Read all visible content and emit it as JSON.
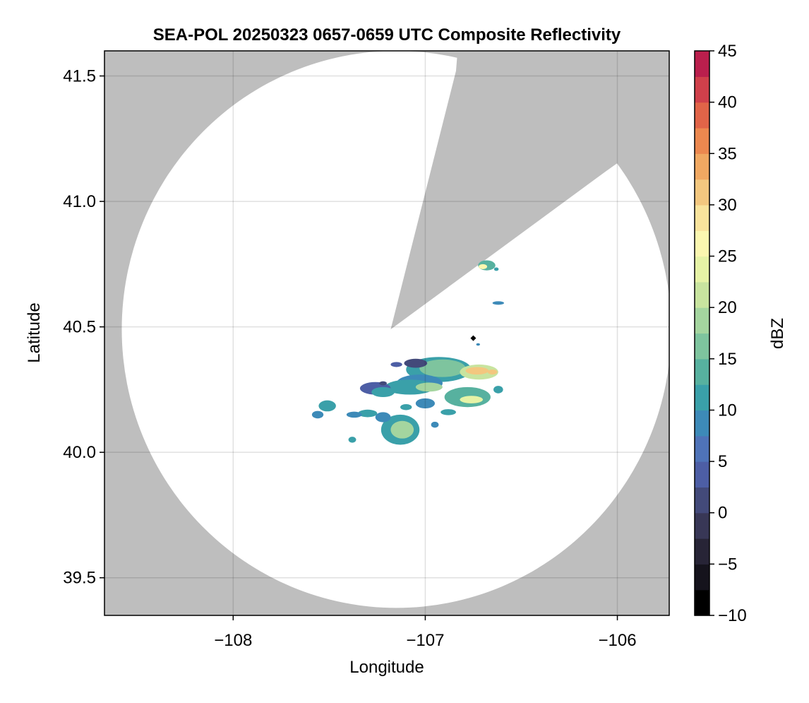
{
  "chart_data": {
    "type": "heatmap",
    "title": "SEA-POL 20250323 0657-0659 UTC Composite Reflectivity",
    "xlabel": "Longitude",
    "ylabel": "Latitude",
    "xlim": [
      -108.67,
      -105.73
    ],
    "ylim": [
      39.35,
      41.6
    ],
    "x_ticks": [
      -108,
      -107,
      -106
    ],
    "x_tick_labels": [
      "−108",
      "−107",
      "−106"
    ],
    "y_ticks": [
      39.5,
      40.0,
      40.5,
      41.0,
      41.5
    ],
    "y_tick_labels": [
      "39.5",
      "40.0",
      "40.5",
      "41.0",
      "41.5"
    ],
    "grid": true,
    "background_color": "#bebebe",
    "coverage_color": "#ffffff",
    "radar_site": {
      "lon": -106.75,
      "lat": 40.455
    },
    "coverage": {
      "center": {
        "lon": -107.15,
        "lat": 40.49
      },
      "radius_lon": 1.43,
      "radius_lat": 1.11,
      "blocked_sector_vertices": [
        {
          "lon": -107.18,
          "lat": 40.49
        },
        {
          "lon": -106.84,
          "lat": 41.52
        },
        {
          "lon": -106.8,
          "lat": 41.9
        },
        {
          "lon": -105.6,
          "lat": 41.9
        },
        {
          "lon": -105.6,
          "lat": 41.37
        },
        {
          "lon": -106.06,
          "lat": 41.12
        }
      ]
    },
    "echo_cells": [
      {
        "lon": -106.68,
        "lat": 40.745,
        "rx": 0.045,
        "ry": 0.02,
        "dbz": 14
      },
      {
        "lon": -106.7,
        "lat": 40.74,
        "rx": 0.022,
        "ry": 0.01,
        "dbz": 27
      },
      {
        "lon": -106.63,
        "lat": 40.73,
        "rx": 0.012,
        "ry": 0.007,
        "dbz": 10
      },
      {
        "lon": -106.62,
        "lat": 40.595,
        "rx": 0.03,
        "ry": 0.007,
        "dbz": 9
      },
      {
        "lon": -106.725,
        "lat": 40.43,
        "rx": 0.01,
        "ry": 0.005,
        "dbz": 9
      },
      {
        "lon": -106.93,
        "lat": 40.33,
        "rx": 0.17,
        "ry": 0.05,
        "dbz": 10
      },
      {
        "lon": -106.91,
        "lat": 40.335,
        "rx": 0.12,
        "ry": 0.035,
        "dbz": 17
      },
      {
        "lon": -106.72,
        "lat": 40.32,
        "rx": 0.1,
        "ry": 0.03,
        "dbz": 20
      },
      {
        "lon": -106.73,
        "lat": 40.325,
        "rx": 0.06,
        "ry": 0.015,
        "dbz": 31
      },
      {
        "lon": -106.65,
        "lat": 40.32,
        "rx": 0.025,
        "ry": 0.01,
        "dbz": 30
      },
      {
        "lon": -107.05,
        "lat": 40.355,
        "rx": 0.06,
        "ry": 0.018,
        "dbz": 1
      },
      {
        "lon": -107.03,
        "lat": 40.275,
        "rx": 0.12,
        "ry": 0.035,
        "dbz": 8
      },
      {
        "lon": -107.08,
        "lat": 40.26,
        "rx": 0.13,
        "ry": 0.03,
        "dbz": 12
      },
      {
        "lon": -106.98,
        "lat": 40.26,
        "rx": 0.07,
        "ry": 0.018,
        "dbz": 18
      },
      {
        "lon": -106.78,
        "lat": 40.22,
        "rx": 0.12,
        "ry": 0.04,
        "dbz": 14
      },
      {
        "lon": -106.76,
        "lat": 40.21,
        "rx": 0.06,
        "ry": 0.015,
        "dbz": 24
      },
      {
        "lon": -107.26,
        "lat": 40.255,
        "rx": 0.08,
        "ry": 0.025,
        "dbz": 4
      },
      {
        "lon": -107.22,
        "lat": 40.24,
        "rx": 0.06,
        "ry": 0.02,
        "dbz": 10
      },
      {
        "lon": -107.0,
        "lat": 40.195,
        "rx": 0.05,
        "ry": 0.02,
        "dbz": 9
      },
      {
        "lon": -106.88,
        "lat": 40.16,
        "rx": 0.04,
        "ry": 0.012,
        "dbz": 10
      },
      {
        "lon": -107.13,
        "lat": 40.09,
        "rx": 0.1,
        "ry": 0.06,
        "dbz": 10
      },
      {
        "lon": -107.12,
        "lat": 40.09,
        "rx": 0.06,
        "ry": 0.035,
        "dbz": 18
      },
      {
        "lon": -107.22,
        "lat": 40.14,
        "rx": 0.04,
        "ry": 0.02,
        "dbz": 9
      },
      {
        "lon": -107.1,
        "lat": 40.18,
        "rx": 0.03,
        "ry": 0.012,
        "dbz": 10
      },
      {
        "lon": -107.3,
        "lat": 40.155,
        "rx": 0.05,
        "ry": 0.015,
        "dbz": 11
      },
      {
        "lon": -107.37,
        "lat": 40.15,
        "rx": 0.04,
        "ry": 0.012,
        "dbz": 9
      },
      {
        "lon": -107.51,
        "lat": 40.185,
        "rx": 0.045,
        "ry": 0.022,
        "dbz": 11
      },
      {
        "lon": -107.56,
        "lat": 40.15,
        "rx": 0.03,
        "ry": 0.015,
        "dbz": 9
      },
      {
        "lon": -107.38,
        "lat": 40.05,
        "rx": 0.02,
        "ry": 0.012,
        "dbz": 10
      },
      {
        "lon": -106.95,
        "lat": 40.11,
        "rx": 0.02,
        "ry": 0.012,
        "dbz": 8
      },
      {
        "lon": -106.62,
        "lat": 40.25,
        "rx": 0.025,
        "ry": 0.015,
        "dbz": 10
      },
      {
        "lon": -107.15,
        "lat": 40.35,
        "rx": 0.03,
        "ry": 0.01,
        "dbz": 3
      },
      {
        "lon": -107.22,
        "lat": 40.275,
        "rx": 0.02,
        "ry": 0.008,
        "dbz": 2
      }
    ],
    "colorbar": {
      "label": "dBZ",
      "range": [
        -10,
        45
      ],
      "step": 2.5,
      "ticks": [
        -10,
        -5,
        0,
        5,
        10,
        15,
        20,
        25,
        30,
        35,
        40,
        45
      ],
      "tick_labels": [
        "−10",
        "−5",
        "0",
        "5",
        "10",
        "15",
        "20",
        "25",
        "30",
        "35",
        "40",
        "45"
      ],
      "colors": [
        "#000000",
        "#15131c",
        "#272436",
        "#383756",
        "#434a7a",
        "#4d5ea5",
        "#4f73b8",
        "#3d8ab8",
        "#3aa0a9",
        "#57b19f",
        "#7ec49e",
        "#a4d59f",
        "#c8e49f",
        "#e6f3a6",
        "#fbf7b0",
        "#f9e39c",
        "#f3c77f",
        "#f0a862",
        "#ec884f",
        "#e16448",
        "#d0404b",
        "#ba1f4d",
        "#a8094e",
        "#c2287b",
        "#d74f95",
        "#e77cb0",
        "#e79fcb",
        "#bf8fc8",
        "#9e74b6",
        "#80529e",
        "#642f83",
        "#4c0e6a"
      ]
    }
  }
}
